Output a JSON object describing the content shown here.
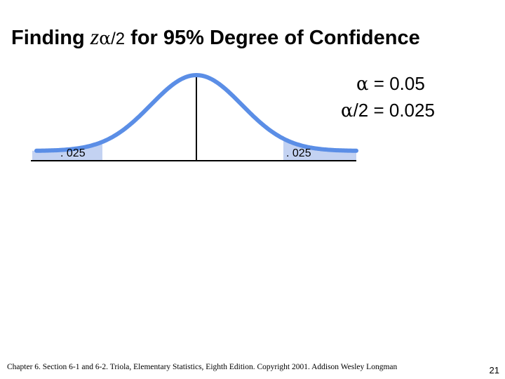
{
  "title": {
    "prefix": "Finding ",
    "z": "z",
    "alpha_symbol": "α",
    "subscript_rest": "/2",
    "suffix": " for 95% Degree of Confidence"
  },
  "info": {
    "alpha_symbol": "α",
    "alpha_rest": " = 0.05",
    "half_symbol": "α",
    "half_rest": "/2 = 0.025"
  },
  "tails": {
    "left_label": ". 025",
    "right_label": ". 025"
  },
  "colors": {
    "curve": "#5b8ee6",
    "tail_shade": "#c3d2f2",
    "axis": "#000000",
    "text": "#000000"
  },
  "footer": {
    "citation": "Chapter 6.  Section 6-1 and 6-2.  Triola, Elementary Statistics, Eighth Edition. Copyright  2001.  Addison Wesley Longman",
    "page_number": "21"
  }
}
